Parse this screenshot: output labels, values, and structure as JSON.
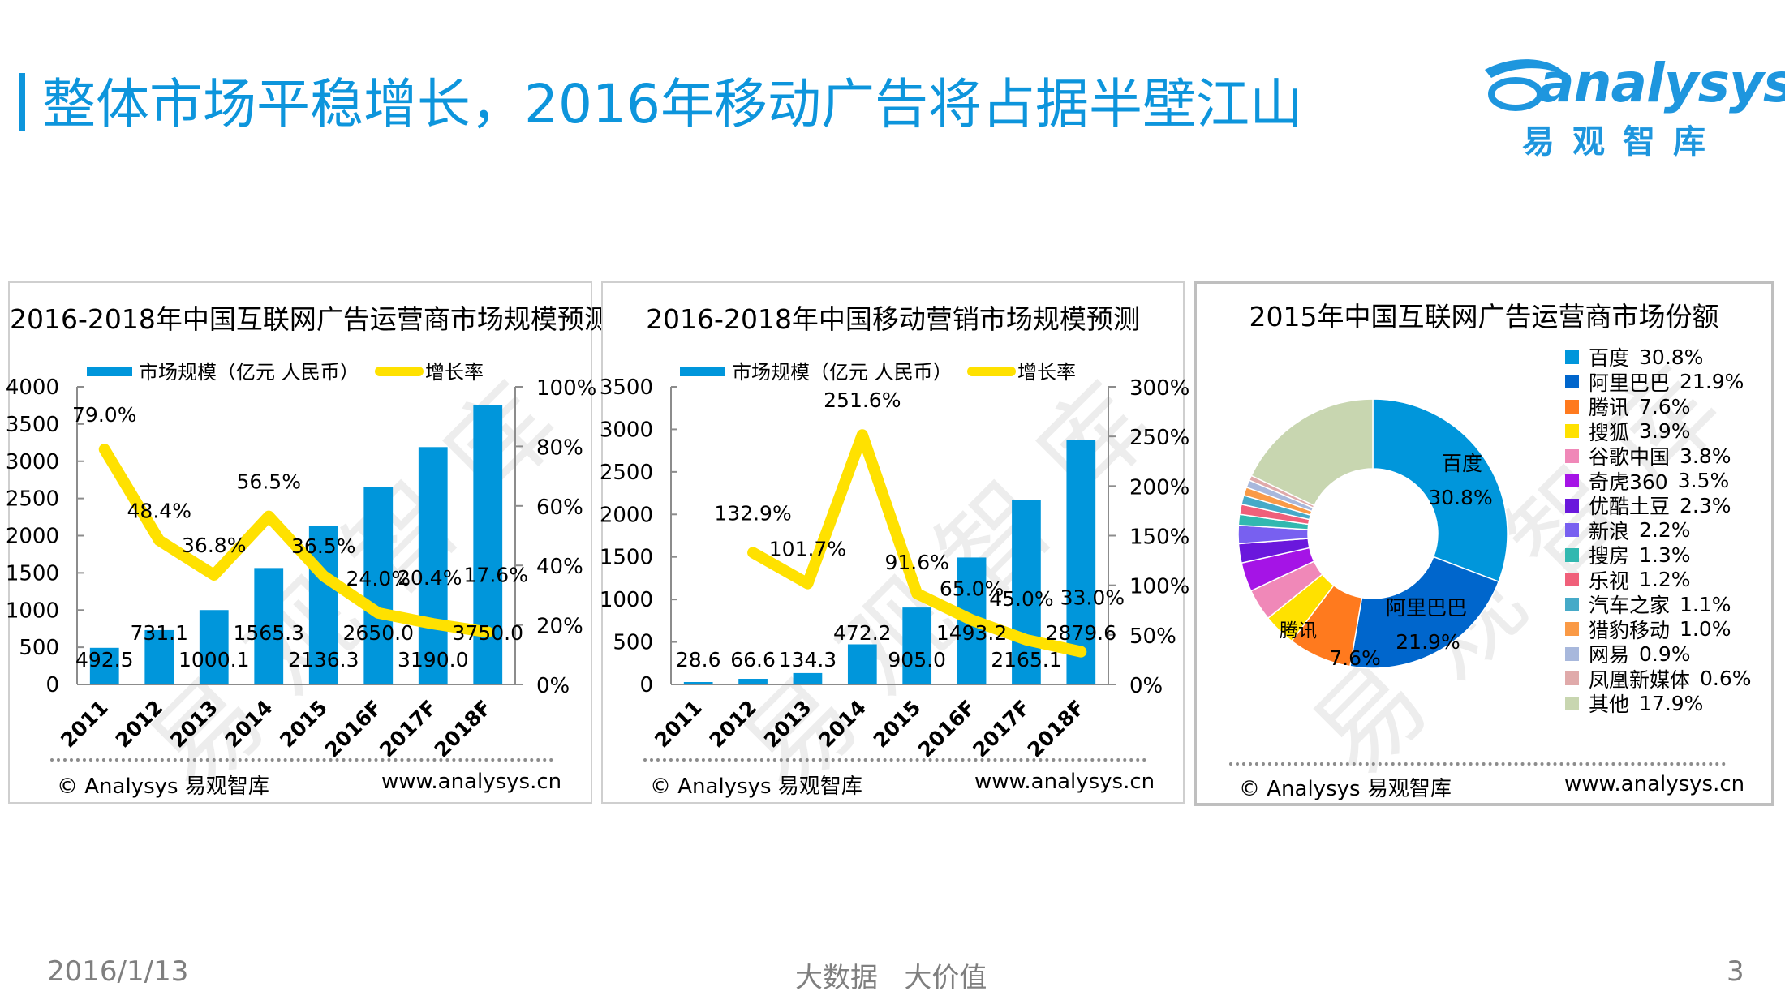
{
  "header": {
    "title": "整体市场平稳增长，2016年移动广告将占据半壁江山",
    "logo_text": "analysys",
    "logo_cn": "易观智库",
    "accent_color": "#0D95DC"
  },
  "footer": {
    "date": "2016/1/13",
    "slogan": "大数据   大价值",
    "page_number": "3"
  },
  "watermark": "易观智库",
  "chart_data": [
    {
      "type": "bar",
      "title": "2016-2018年中国互联网广告运营商市场规模预测",
      "categories": [
        "2011",
        "2012",
        "2013",
        "2014",
        "2015",
        "2016F",
        "2017F",
        "2018F"
      ],
      "series": [
        {
          "name": "市场规模（亿元 人民币）",
          "type": "bar",
          "axis": "left",
          "color": "#0096DB",
          "values": [
            492.5,
            731.1,
            1000.1,
            1565.3,
            2136.3,
            2650.0,
            3190.0,
            3750.0
          ],
          "labels": [
            "492.5",
            "731.1",
            "1000.1",
            "1565.3",
            "2136.3",
            "2650.0",
            "3190.0",
            "3750.0"
          ]
        },
        {
          "name": "增长率",
          "type": "line",
          "axis": "right",
          "color": "#FFE100",
          "values": [
            79.0,
            48.4,
            36.8,
            56.5,
            36.5,
            24.0,
            20.4,
            17.6
          ],
          "labels": [
            "79.0%",
            "48.4%",
            "36.8%",
            "56.5%",
            "36.5%",
            "24.0%",
            "20.4%",
            "17.6%"
          ]
        }
      ],
      "left_axis": {
        "min": 0,
        "max": 4000,
        "step": 500,
        "ticks": [
          "0",
          "500",
          "1000",
          "1500",
          "2000",
          "2500",
          "3000",
          "3500",
          "4000"
        ]
      },
      "right_axis": {
        "min": 0,
        "max": 100,
        "step": 20,
        "ticks": [
          "0%",
          "20%",
          "40%",
          "60%",
          "80%",
          "100%"
        ]
      },
      "legend": {
        "position": "top",
        "bar_label": "市场规模（亿元 人民币）",
        "line_label": "增长率"
      },
      "grid": false,
      "credit_left": "© Analysys 易观智库",
      "credit_right": "www.analysys.cn"
    },
    {
      "type": "bar",
      "title": "2016-2018年中国移动营销市场规模预测",
      "categories": [
        "2011",
        "2012",
        "2013",
        "2014",
        "2015",
        "2016F",
        "2017F",
        "2018F"
      ],
      "series": [
        {
          "name": "市场规模（亿元 人民币）",
          "type": "bar",
          "axis": "left",
          "color": "#0096DB",
          "values": [
            28.6,
            66.6,
            134.3,
            472.2,
            905.0,
            1493.2,
            2165.1,
            2879.6
          ],
          "labels": [
            "28.6",
            "66.6",
            "134.3",
            "472.2",
            "905.0",
            "1493.2",
            "2165.1",
            "2879.6"
          ]
        },
        {
          "name": "增长率",
          "type": "line",
          "axis": "right",
          "color": "#FFE100",
          "values": [
            null,
            132.9,
            101.7,
            251.6,
            91.6,
            65.0,
            45.0,
            33.0
          ],
          "labels": [
            "",
            "132.9%",
            "101.7%",
            "251.6%",
            "91.6%",
            "65.0%",
            "45.0%",
            "33.0%"
          ]
        }
      ],
      "left_axis": {
        "min": 0,
        "max": 3500,
        "step": 500,
        "ticks": [
          "0",
          "500",
          "1000",
          "1500",
          "2000",
          "2500",
          "3000",
          "3500"
        ]
      },
      "right_axis": {
        "min": 0,
        "max": 300,
        "step": 50,
        "ticks": [
          "0%",
          "50%",
          "100%",
          "150%",
          "200%",
          "250%",
          "300%"
        ]
      },
      "legend": {
        "position": "top",
        "bar_label": "市场规模（亿元 人民币）",
        "line_label": "增长率"
      },
      "grid": false,
      "credit_left": "© Analysys 易观智库",
      "credit_right": "www.analysys.cn"
    },
    {
      "type": "pie",
      "donut": true,
      "title": "2015年中国互联网广告运营商市场份额",
      "legend_position": "right",
      "slices": [
        {
          "name": "百度",
          "value": 30.8,
          "label": "30.8%",
          "color": "#0096DB",
          "inline_label": true
        },
        {
          "name": "阿里巴巴",
          "value": 21.9,
          "label": "21.9%",
          "color": "#0066CC",
          "inline_label": true
        },
        {
          "name": "腾讯",
          "value": 7.6,
          "label": "7.6%",
          "color": "#FF7A1E",
          "inline_label": true
        },
        {
          "name": "搜狐",
          "value": 3.9,
          "label": "3.9%",
          "color": "#FFE100"
        },
        {
          "name": "谷歌中国",
          "value": 3.8,
          "label": "3.8%",
          "color": "#F088B8"
        },
        {
          "name": "奇虎360",
          "value": 3.5,
          "label": "3.5%",
          "color": "#A514E6"
        },
        {
          "name": "优酷土豆",
          "value": 2.3,
          "label": "2.3%",
          "color": "#6A18DC"
        },
        {
          "name": "新浪",
          "value": 2.2,
          "label": "2.2%",
          "color": "#7860F0"
        },
        {
          "name": "搜房",
          "value": 1.3,
          "label": "1.3%",
          "color": "#32B8B0"
        },
        {
          "name": "乐视",
          "value": 1.2,
          "label": "1.2%",
          "color": "#F0607A"
        },
        {
          "name": "汽车之家",
          "value": 1.1,
          "label": "1.1%",
          "color": "#46AAC8"
        },
        {
          "name": "猎豹移动",
          "value": 1.0,
          "label": "1.0%",
          "color": "#FA9A46"
        },
        {
          "name": "网易",
          "value": 0.9,
          "label": "0.9%",
          "color": "#A8B8DC"
        },
        {
          "name": "凤凰新媒体",
          "value": 0.6,
          "label": "0.6%",
          "color": "#E0AAAA"
        },
        {
          "name": "其他",
          "value": 17.9,
          "label": "17.9%",
          "color": "#C8D6B0"
        }
      ],
      "credit_left": "© Analysys 易观智库",
      "credit_right": "www.analysys.cn"
    }
  ]
}
